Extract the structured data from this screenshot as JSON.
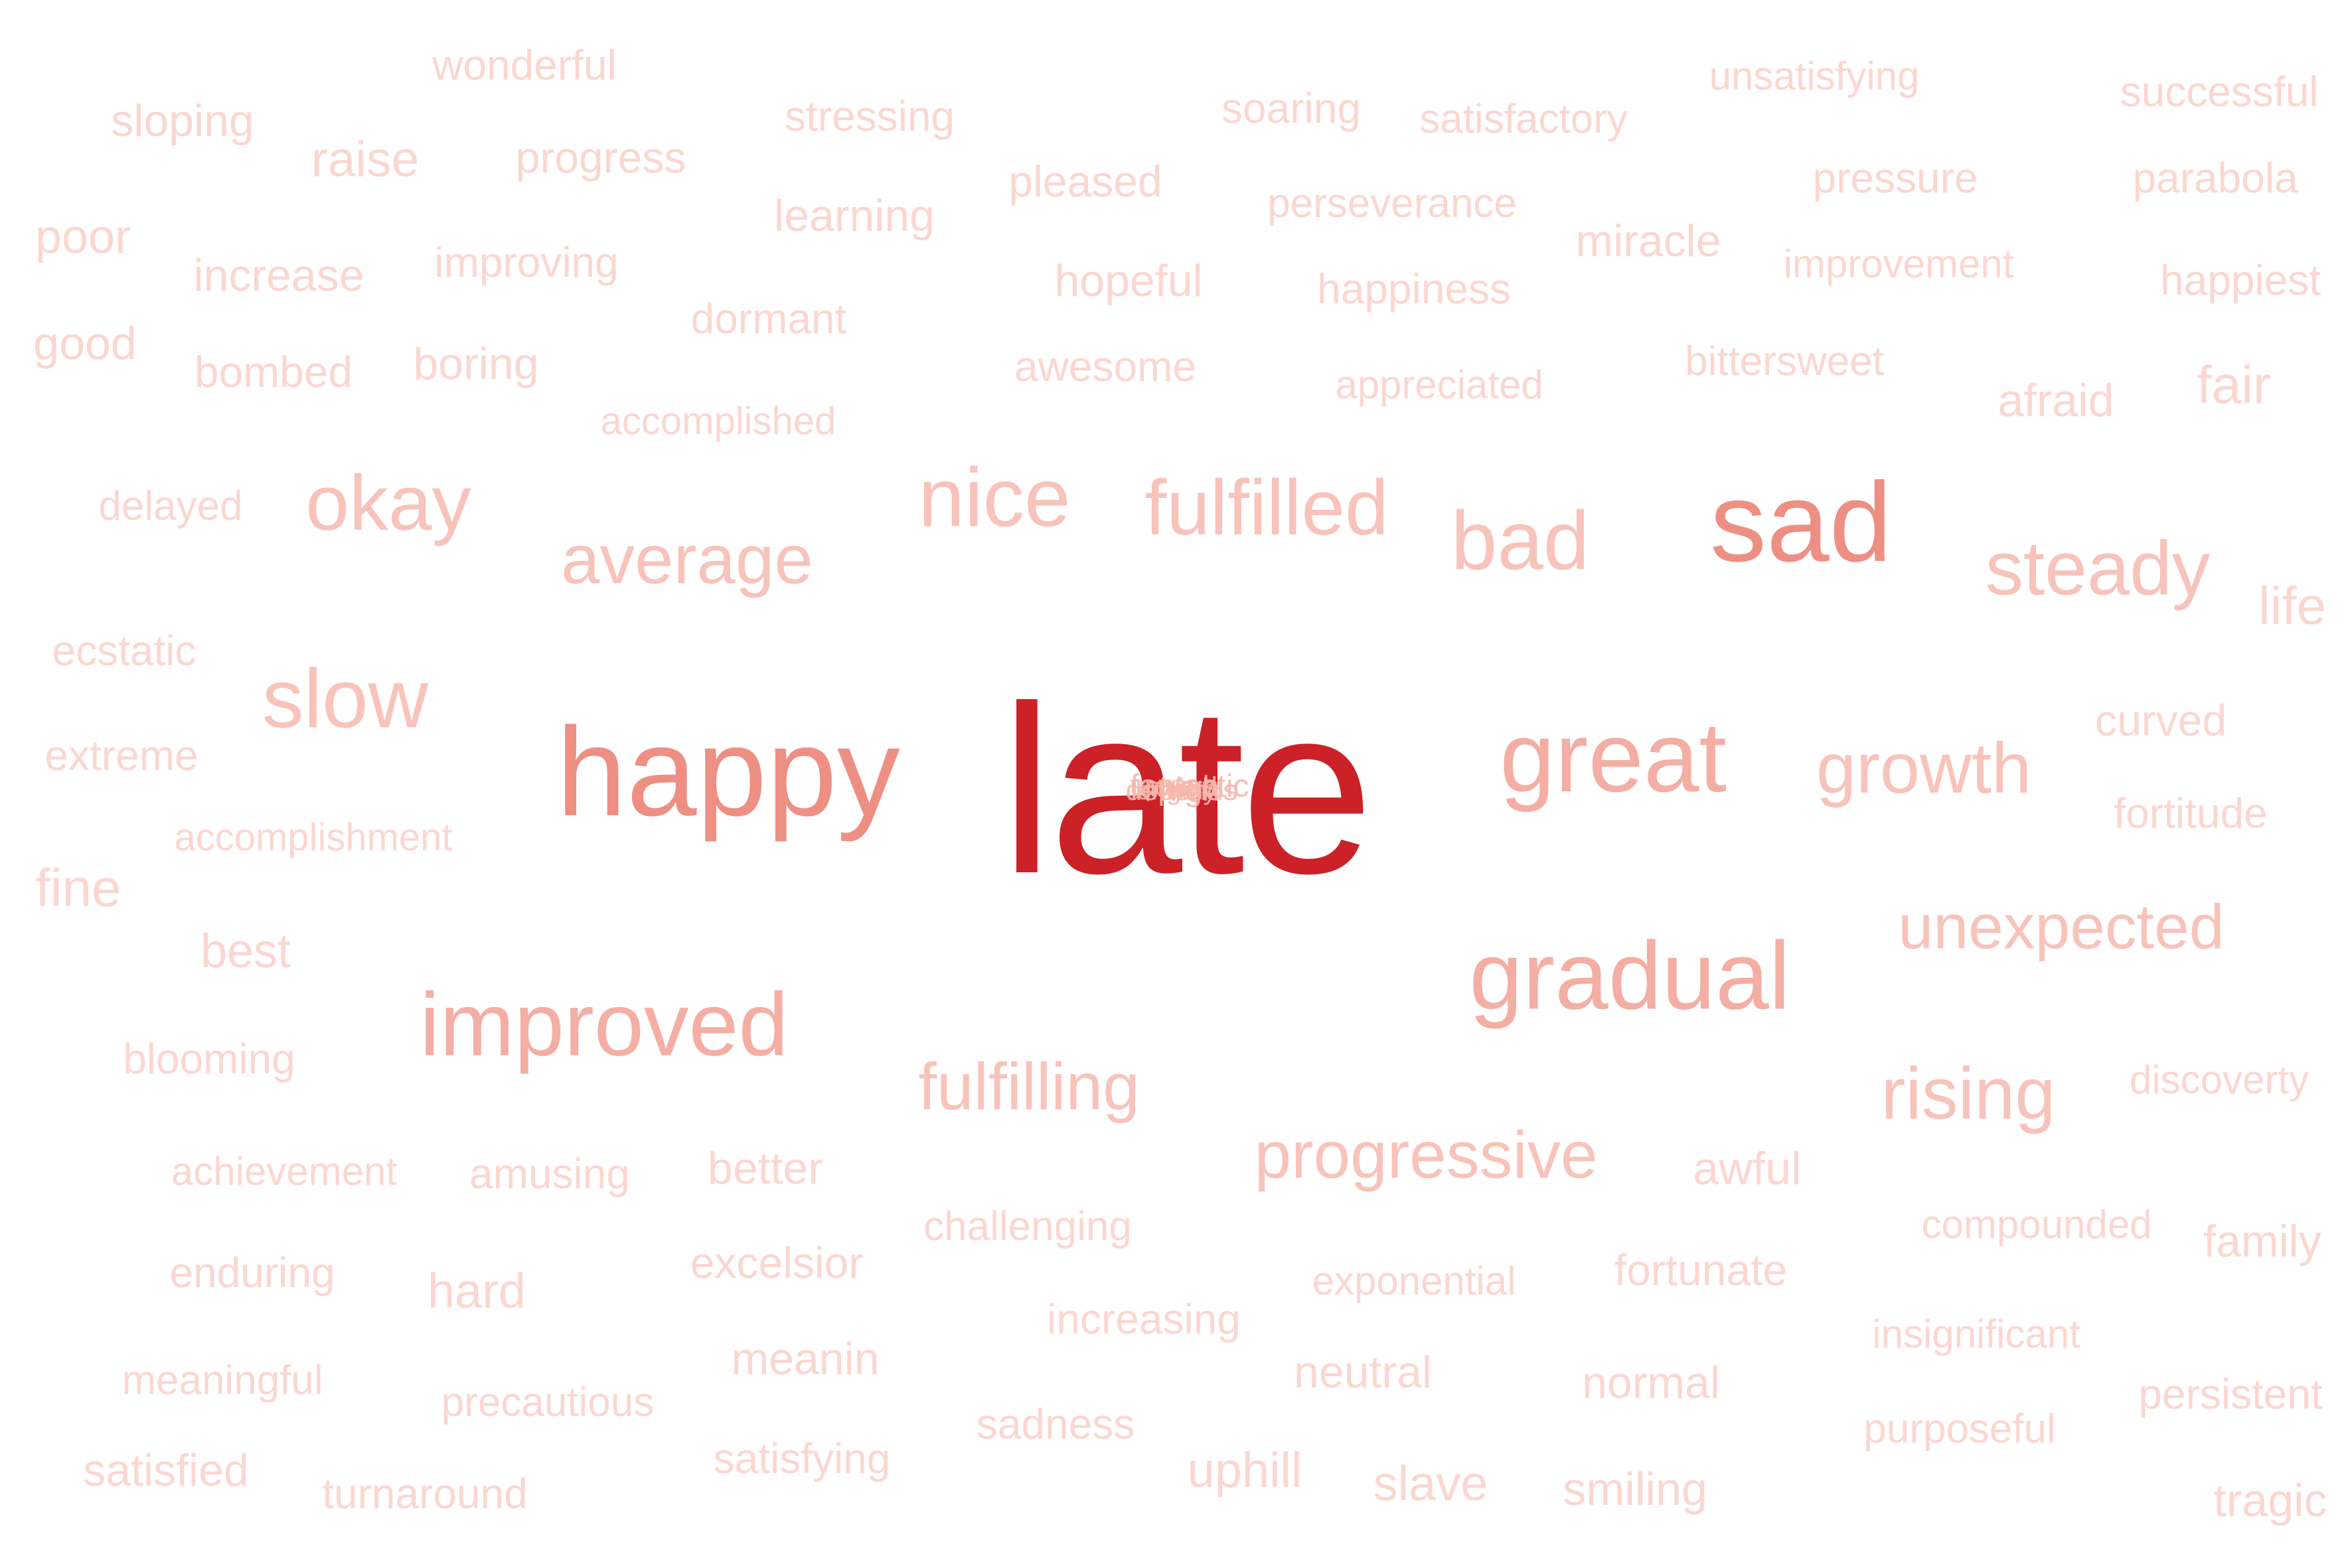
{
  "colors": {
    "faint": "#fbd7d1",
    "light": "#f8c3bb",
    "medium": "#f4aea4",
    "strong": "#ee8f84",
    "main": "#cb2127",
    "center_overlay": "#f6b8ae"
  },
  "cloud": {
    "words": [
      {
        "text": "late",
        "level": "main"
      },
      {
        "text": "happy",
        "level": "strong"
      },
      {
        "text": "sad",
        "level": "strong"
      },
      {
        "text": "great",
        "level": "medium"
      },
      {
        "text": "gradual",
        "level": "medium"
      },
      {
        "text": "improved",
        "level": "medium"
      },
      {
        "text": "nice",
        "level": "light"
      },
      {
        "text": "fulfilled",
        "level": "light"
      },
      {
        "text": "bad",
        "level": "light"
      },
      {
        "text": "steady",
        "level": "light"
      },
      {
        "text": "okay",
        "level": "light"
      },
      {
        "text": "slow",
        "level": "light"
      },
      {
        "text": "growth",
        "level": "light"
      },
      {
        "text": "average",
        "level": "light"
      },
      {
        "text": "rising",
        "level": "light"
      },
      {
        "text": "unexpected",
        "level": "light"
      },
      {
        "text": "fulfilling",
        "level": "light"
      },
      {
        "text": "progressive",
        "level": "light"
      },
      {
        "text": "wonderful",
        "level": "faint"
      },
      {
        "text": "sloping",
        "level": "faint"
      },
      {
        "text": "raise",
        "level": "faint"
      },
      {
        "text": "progress",
        "level": "faint"
      },
      {
        "text": "stressing",
        "level": "faint"
      },
      {
        "text": "soaring",
        "level": "faint"
      },
      {
        "text": "satisfactory",
        "level": "faint"
      },
      {
        "text": "unsatisfying",
        "level": "faint"
      },
      {
        "text": "successful",
        "level": "faint"
      },
      {
        "text": "poor",
        "level": "faint"
      },
      {
        "text": "learning",
        "level": "faint"
      },
      {
        "text": "pleased",
        "level": "faint"
      },
      {
        "text": "perseverance",
        "level": "faint"
      },
      {
        "text": "pressure",
        "level": "faint"
      },
      {
        "text": "parabola",
        "level": "faint"
      },
      {
        "text": "increase",
        "level": "faint"
      },
      {
        "text": "improving",
        "level": "faint"
      },
      {
        "text": "miracle",
        "level": "faint"
      },
      {
        "text": "improvement",
        "level": "faint"
      },
      {
        "text": "hopeful",
        "level": "faint"
      },
      {
        "text": "happiness",
        "level": "faint"
      },
      {
        "text": "happiest",
        "level": "faint"
      },
      {
        "text": "good",
        "level": "faint"
      },
      {
        "text": "dormant",
        "level": "faint"
      },
      {
        "text": "bombed",
        "level": "faint"
      },
      {
        "text": "boring",
        "level": "faint"
      },
      {
        "text": "awesome",
        "level": "faint"
      },
      {
        "text": "bittersweet",
        "level": "faint"
      },
      {
        "text": "appreciated",
        "level": "faint"
      },
      {
        "text": "fair",
        "level": "faint"
      },
      {
        "text": "afraid",
        "level": "faint"
      },
      {
        "text": "accomplished",
        "level": "faint"
      },
      {
        "text": "delayed",
        "level": "faint"
      },
      {
        "text": "life",
        "level": "faint"
      },
      {
        "text": "ecstatic",
        "level": "faint"
      },
      {
        "text": "curved",
        "level": "faint"
      },
      {
        "text": "extreme",
        "level": "faint"
      },
      {
        "text": "fortitude",
        "level": "faint"
      },
      {
        "text": "accomplishment",
        "level": "faint"
      },
      {
        "text": "fine",
        "level": "faint"
      },
      {
        "text": "best",
        "level": "faint"
      },
      {
        "text": "blooming",
        "level": "faint"
      },
      {
        "text": "discoverty",
        "level": "faint"
      },
      {
        "text": "achievement",
        "level": "faint"
      },
      {
        "text": "amusing",
        "level": "faint"
      },
      {
        "text": "better",
        "level": "faint"
      },
      {
        "text": "awful",
        "level": "faint"
      },
      {
        "text": "challenging",
        "level": "faint"
      },
      {
        "text": "compounded",
        "level": "faint"
      },
      {
        "text": "family",
        "level": "faint"
      },
      {
        "text": "enduring",
        "level": "faint"
      },
      {
        "text": "hard",
        "level": "faint"
      },
      {
        "text": "excelsior",
        "level": "faint"
      },
      {
        "text": "exponential",
        "level": "faint"
      },
      {
        "text": "fortunate",
        "level": "faint"
      },
      {
        "text": "increasing",
        "level": "faint"
      },
      {
        "text": "insignificant",
        "level": "faint"
      },
      {
        "text": "meaningful",
        "level": "faint"
      },
      {
        "text": "meanin",
        "level": "faint"
      },
      {
        "text": "neutral",
        "level": "faint"
      },
      {
        "text": "normal",
        "level": "faint"
      },
      {
        "text": "persistent",
        "level": "faint"
      },
      {
        "text": "precautious",
        "level": "faint"
      },
      {
        "text": "sadness",
        "level": "faint"
      },
      {
        "text": "purposeful",
        "level": "faint"
      },
      {
        "text": "satisfied",
        "level": "faint"
      },
      {
        "text": "satisfying",
        "level": "faint"
      },
      {
        "text": "uphill",
        "level": "faint"
      },
      {
        "text": "slave",
        "level": "faint"
      },
      {
        "text": "smiling",
        "level": "faint"
      },
      {
        "text": "turnaround",
        "level": "faint"
      },
      {
        "text": "tragic",
        "level": "faint"
      }
    ],
    "center_overlay": [
      "upward",
      "depends",
      "fantastic",
      "lengthy",
      "rough",
      "high"
    ]
  }
}
